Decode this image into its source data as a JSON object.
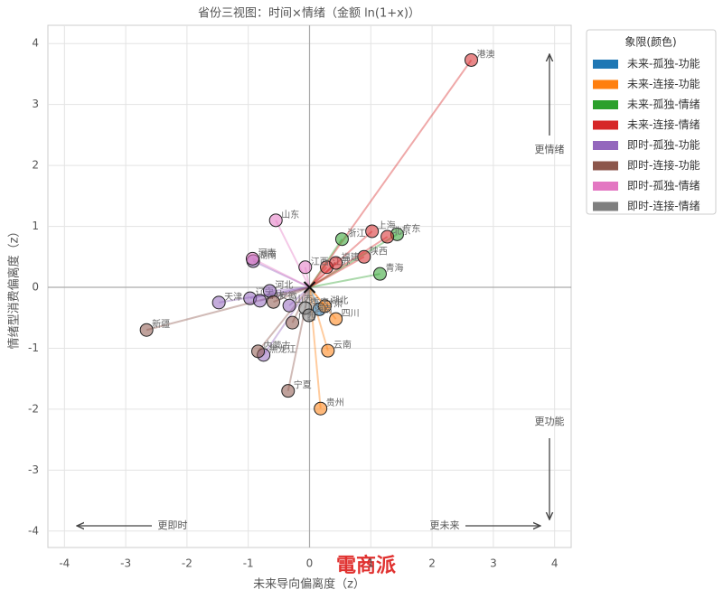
{
  "chart_data": {
    "type": "scatter",
    "title": "省份三视图：时间×情绪（金额 ln(1+x)）",
    "x_label": "未来导向偏离度（z）",
    "y_label": "情绪型消费偏离度（z）",
    "xlim": [
      -4.27,
      4.27
    ],
    "ylim": [
      -4.27,
      4.3
    ],
    "xticks": [
      -4,
      -3,
      -2,
      -1,
      0,
      1,
      2,
      3,
      4
    ],
    "yticks": [
      -4,
      -3,
      -2,
      -1,
      0,
      1,
      2,
      3,
      4
    ],
    "grid": true,
    "origin": [
      0,
      0
    ],
    "legend_title": "象限(颜色)",
    "legend_position": "outside right",
    "annotations": [
      "更情绪",
      "更功能",
      "更即时",
      "更未来"
    ],
    "watermark": "電商派",
    "series": [
      {
        "name": "未来-孤独-功能",
        "color": "#1f77b4",
        "x": [
          0.16
        ],
        "values": [
          -0.36
        ],
        "labels": [
          "甘肃"
        ]
      },
      {
        "name": "未来-连接-功能",
        "color": "#ff7f0e",
        "x": [
          0.25,
          0.43,
          0.3,
          0.18
        ],
        "values": [
          -0.31,
          -0.52,
          -1.04,
          -1.99
        ],
        "labels": [
          "湖北",
          "四川",
          "云南",
          "贵州"
        ]
      },
      {
        "name": "未来-孤独-情绪",
        "color": "#2ca02c",
        "x": [
          1.43,
          0.53,
          1.15
        ],
        "values": [
          0.87,
          0.79,
          0.22
        ],
        "labels": [
          "广东",
          "浙江",
          "青海"
        ]
      },
      {
        "name": "未来-连接-情绪",
        "color": "#d62728",
        "x": [
          2.64,
          1.02,
          1.27,
          0.89,
          0.28,
          0.43
        ],
        "values": [
          3.73,
          0.92,
          0.83,
          0.5,
          0.33,
          0.4
        ],
        "labels": [
          "港澳",
          "上海",
          "北京",
          "陕西",
          "江苏",
          "福建"
        ]
      },
      {
        "name": "即时-孤独-功能",
        "color": "#9467bd",
        "x": [
          -0.92,
          -1.48,
          -0.97,
          -0.81,
          -0.65,
          -0.33,
          -0.75
        ],
        "values": [
          0.43,
          -0.25,
          -0.18,
          -0.22,
          -0.06,
          -0.3,
          -1.11
        ],
        "labels": [
          "湖南",
          "天津",
          "辽宁",
          "吉林",
          "河北",
          "山西",
          "黑龙江"
        ]
      },
      {
        "name": "即时-连接-功能",
        "color": "#8c564b",
        "x": [
          -0.59,
          -0.28,
          -2.66,
          -0.84,
          -0.35
        ],
        "values": [
          -0.24,
          -0.58,
          -0.7,
          -1.05,
          -1.7
        ],
        "labels": [
          "安徽",
          "广西",
          "新疆",
          "内蒙古",
          "宁夏"
        ]
      },
      {
        "name": "即时-孤独-情绪",
        "color": "#e377c2",
        "x": [
          -0.55,
          -0.93,
          -0.07
        ],
        "values": [
          1.1,
          0.47,
          0.33
        ],
        "labels": [
          "山东",
          "河南",
          "江西"
        ]
      },
      {
        "name": "即时-连接-情绪",
        "color": "#7f7f7f",
        "x": [
          -0.07,
          -0.01
        ],
        "values": [
          -0.34,
          -0.46
        ],
        "labels": [
          "重庆",
          "海南"
        ]
      }
    ]
  }
}
